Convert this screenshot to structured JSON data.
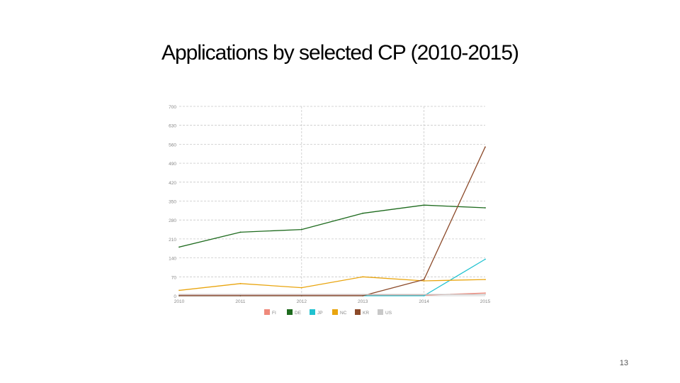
{
  "slide": {
    "title": "Applications by selected CP (2010-2015)",
    "page_number": "13"
  },
  "chart_data": {
    "type": "line",
    "title": "",
    "xlabel": "",
    "ylabel": "",
    "x": [
      "2010",
      "2011",
      "2012",
      "2013",
      "2014",
      "2015"
    ],
    "yticks": [
      "0",
      "70",
      "140",
      "210",
      "280",
      "350",
      "420",
      "490",
      "560",
      "630",
      "700"
    ],
    "ylim": [
      0,
      700
    ],
    "grid": true,
    "legend_position": "bottom",
    "series": [
      {
        "name": "FI",
        "color": "#ef8a7c",
        "values": [
          2,
          2,
          2,
          2,
          2,
          10
        ]
      },
      {
        "name": "DE",
        "color": "#1e6b1e",
        "values": [
          180,
          235,
          245,
          305,
          335,
          325
        ]
      },
      {
        "name": "JP",
        "color": "#21c2d0",
        "values": [
          0,
          0,
          0,
          0,
          0,
          135
        ]
      },
      {
        "name": "NC",
        "color": "#e9a50f",
        "values": [
          20,
          45,
          30,
          70,
          55,
          60
        ]
      },
      {
        "name": "KR",
        "color": "#8c4a2a",
        "values": [
          0,
          0,
          0,
          0,
          60,
          550
        ]
      },
      {
        "name": "US",
        "color": "#c8c8c8",
        "values": [
          5,
          5,
          5,
          5,
          5,
          5
        ]
      }
    ]
  }
}
